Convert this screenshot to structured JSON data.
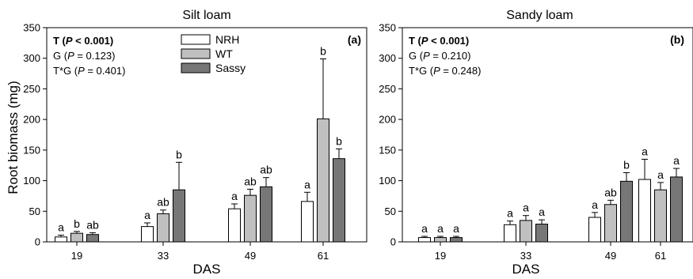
{
  "y_axis_label": "Root biomass (mg)",
  "legend": {
    "entries": [
      {
        "label": "NRH",
        "color": "#ffffff"
      },
      {
        "label": "WT",
        "color": "#c0c0c0"
      },
      {
        "label": "Sassy",
        "color": "#777777"
      }
    ]
  },
  "chart_data": [
    {
      "type": "bar",
      "title": "Silt loam",
      "panel_label": "(a)",
      "xlabel": "DAS",
      "ylabel": "Root biomass (mg)",
      "ylim": [
        0,
        350
      ],
      "yticks": [
        0,
        50,
        100,
        150,
        200,
        250,
        300,
        350
      ],
      "categories": [
        "19",
        "33",
        "49",
        "61"
      ],
      "stats": [
        {
          "prefix": "T (",
          "p": "P",
          "suffix": " < 0.001)",
          "bold": true
        },
        {
          "prefix": "G (",
          "p": "P",
          "suffix": " = 0.123)",
          "bold": false
        },
        {
          "prefix": "T*G (",
          "p": "P",
          "suffix": " = 0.401)",
          "bold": false
        }
      ],
      "series": [
        {
          "name": "NRH",
          "values": [
            8,
            25,
            54,
            66
          ],
          "errors": [
            3,
            6,
            8,
            15
          ],
          "letters": [
            "a",
            "a",
            "a",
            "a"
          ]
        },
        {
          "name": "WT",
          "values": [
            14,
            46,
            76,
            201
          ],
          "errors": [
            3,
            6,
            10,
            98
          ],
          "letters": [
            "b",
            "ab",
            "ab",
            "b"
          ]
        },
        {
          "name": "Sassy",
          "values": [
            12,
            85,
            90,
            136
          ],
          "errors": [
            3,
            45,
            15,
            16
          ],
          "letters": [
            "ab",
            "b",
            "ab",
            "b"
          ]
        }
      ]
    },
    {
      "type": "bar",
      "title": "Sandy loam",
      "panel_label": "(b)",
      "xlabel": "DAS",
      "ylabel": "",
      "ylim": [
        0,
        350
      ],
      "yticks": [
        0,
        50,
        100,
        150,
        200,
        250,
        300,
        350
      ],
      "categories": [
        "19",
        "33",
        "49",
        "61"
      ],
      "stats": [
        {
          "prefix": "T (",
          "p": "P",
          "suffix": " < 0.001)",
          "bold": true
        },
        {
          "prefix": "G (",
          "p": "P",
          "suffix": " = 0.210)",
          "bold": false
        },
        {
          "prefix": "T*G (",
          "p": "P",
          "suffix": " = 0.248)",
          "bold": false
        }
      ],
      "series": [
        {
          "name": "NRH",
          "values": [
            7,
            28,
            40,
            102
          ],
          "errors": [
            2,
            6,
            8,
            33
          ],
          "letters": [
            "a",
            "a",
            "a",
            "a"
          ]
        },
        {
          "name": "WT",
          "values": [
            7,
            35,
            61,
            85
          ],
          "errors": [
            2,
            8,
            7,
            12
          ],
          "letters": [
            "a",
            "a",
            "ab",
            "a"
          ]
        },
        {
          "name": "Sassy",
          "values": [
            7,
            29,
            99,
            106
          ],
          "errors": [
            2,
            7,
            14,
            14
          ],
          "letters": [
            "a",
            "a",
            "b",
            "a"
          ]
        }
      ]
    }
  ]
}
